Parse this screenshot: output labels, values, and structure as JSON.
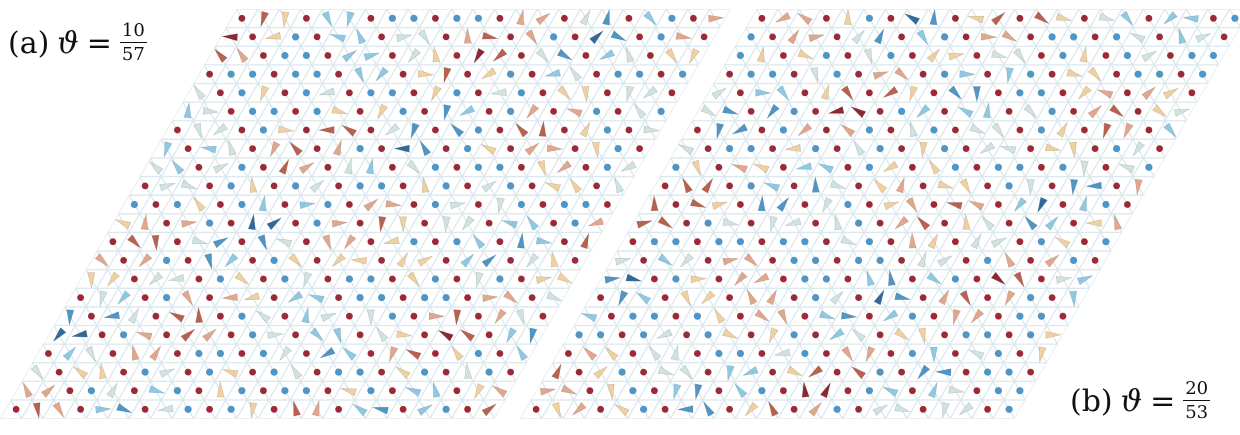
{
  "panels": [
    {
      "id": "a",
      "tag": "(a)",
      "symbol": "ϑ",
      "equals": "=",
      "numerator": "10",
      "denominator": "57",
      "lattice": "triangular",
      "texture": "moire spin texture with cone-shaped spins"
    },
    {
      "id": "b",
      "tag": "(b)",
      "symbol": "ϑ",
      "equals": "=",
      "numerator": "20",
      "denominator": "53",
      "lattice": "triangular",
      "texture": "moire spin texture with cone-shaped spins"
    }
  ],
  "colors": {
    "background": "#ffffff",
    "lattice_lines": "#dbe8ee",
    "site_dot": "#9c2a36",
    "palette": [
      "#2f6a9a",
      "#4f95c6",
      "#8ec9e3",
      "#cfe3df",
      "#f2ead2",
      "#efd09e",
      "#e1a68b",
      "#b9614f",
      "#8f2733"
    ]
  }
}
